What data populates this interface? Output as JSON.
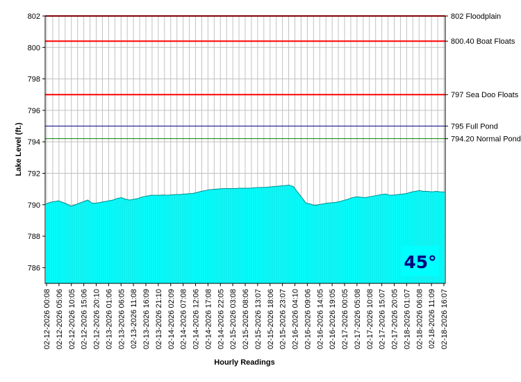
{
  "chart_data": {
    "type": "area",
    "xlabel": "Hourly Readings",
    "ylabel": "Lake Level (ft.)",
    "ylim": [
      785,
      802
    ],
    "yticks": [
      786,
      788,
      790,
      792,
      794,
      796,
      798,
      800,
      802
    ],
    "grid": true,
    "fill_color": "#00ffff",
    "x_tick_labels": [
      "02-12-2026 00:08",
      "02-12-2026 05:06",
      "02-12-2026 10:05",
      "02-12-2026 15:06",
      "02-12-2026 20:10",
      "02-13-2026 01:06",
      "02-13-2026 06:05",
      "02-13-2026 11:08",
      "02-13-2026 16:09",
      "02-13-2026 21:10",
      "02-14-2026 02:09",
      "02-14-2026 07:08",
      "02-14-2026 12:06",
      "02-14-2026 17:08",
      "02-14-2026 22:05",
      "02-15-2026 03:08",
      "02-15-2026 08:06",
      "02-15-2026 13:07",
      "02-15-2026 18:06",
      "02-15-2026 23:07",
      "02-16-2026 04:10",
      "02-16-2026 09:06",
      "02-16-2026 14:05",
      "02-16-2026 19:05",
      "02-17-2026 00:05",
      "02-17-2026 05:08",
      "02-17-2026 10:08",
      "02-17-2026 15:07",
      "02-17-2026 20:05",
      "02-18-2026 01:07",
      "02-18-2026 06:08",
      "02-18-2026 11:09",
      "02-18-2026 16:07"
    ],
    "series": [
      {
        "values": [
          790.05,
          790.15,
          790.2,
          790.25,
          790.15,
          790.05,
          789.9,
          790.0,
          790.1,
          790.2,
          790.3,
          790.1,
          790.1,
          790.15,
          790.2,
          790.25,
          790.3,
          790.4,
          790.45,
          790.35,
          790.3,
          790.35,
          790.4,
          790.5,
          790.55,
          790.6,
          790.6,
          790.6,
          790.62,
          790.6,
          790.63,
          790.65,
          790.65,
          790.68,
          790.7,
          790.72,
          790.78,
          790.85,
          790.9,
          790.95,
          790.98,
          791.0,
          791.02,
          791.03,
          791.03,
          791.03,
          791.05,
          791.05,
          791.05,
          791.06,
          791.08,
          791.1,
          791.1,
          791.12,
          791.15,
          791.17,
          791.2,
          791.22,
          791.25,
          791.15,
          790.8,
          790.45,
          790.1,
          790.05,
          789.95,
          790.0,
          790.05,
          790.1,
          790.12,
          790.15,
          790.2,
          790.28,
          790.35,
          790.45,
          790.5,
          790.48,
          790.45,
          790.5,
          790.55,
          790.6,
          790.65,
          790.68,
          790.6,
          790.62,
          790.65,
          790.68,
          790.72,
          790.8,
          790.85,
          790.9,
          790.85,
          790.85,
          790.82,
          790.85,
          790.82,
          790.8
        ]
      }
    ],
    "reference_lines": [
      {
        "value": 802,
        "label": "802 Floodplain",
        "color": "#ff0000"
      },
      {
        "value": 800.4,
        "label": "800.40 Boat Floats",
        "color": "#ff0000"
      },
      {
        "value": 797,
        "label": "797 Sea Doo Floats",
        "color": "#ff0000"
      },
      {
        "value": 795,
        "label": "795 Full Pond",
        "color": "#000080"
      },
      {
        "value": 794.2,
        "label": "794.20 Normal Pond",
        "color": "#008000"
      }
    ]
  },
  "badge": {
    "text": "45°",
    "background": "#00ffff",
    "color": "#000080"
  }
}
